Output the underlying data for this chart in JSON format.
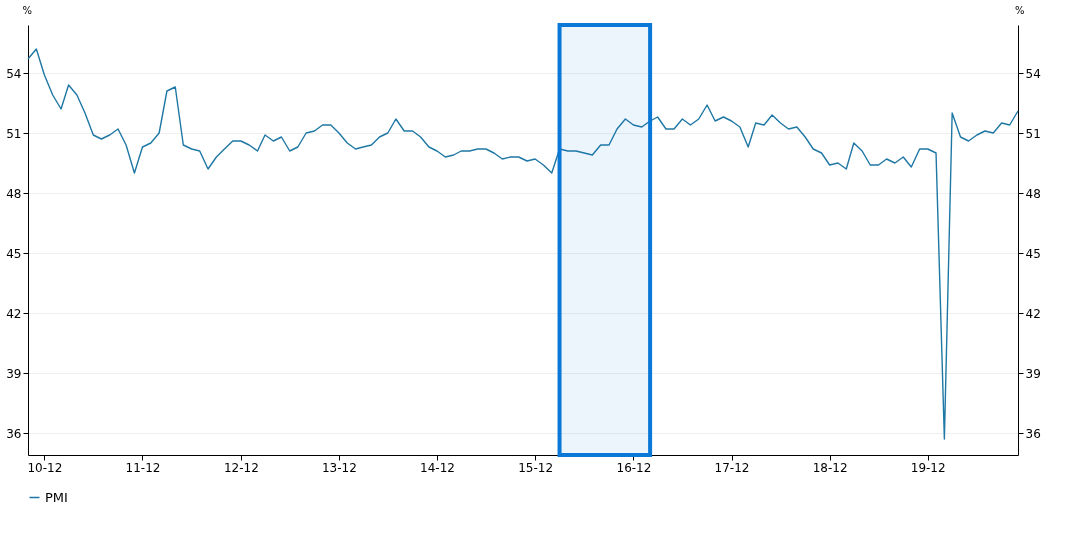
{
  "chart_data": {
    "type": "line",
    "ylabel": "%",
    "y2label": "%",
    "x": [
      "2010-10",
      "2010-11",
      "2010-12",
      "2011-01",
      "2011-02",
      "2011-03",
      "2011-04",
      "2011-05",
      "2011-06",
      "2011-07",
      "2011-08",
      "2011-09",
      "2011-10",
      "2011-11",
      "2011-12",
      "2012-01",
      "2012-02",
      "2012-03",
      "2012-04",
      "2012-05",
      "2012-06",
      "2012-07",
      "2012-08",
      "2012-09",
      "2012-10",
      "2012-11",
      "2012-12",
      "2013-01",
      "2013-02",
      "2013-03",
      "2013-04",
      "2013-05",
      "2013-06",
      "2013-07",
      "2013-08",
      "2013-09",
      "2013-10",
      "2013-11",
      "2013-12",
      "2014-01",
      "2014-02",
      "2014-03",
      "2014-04",
      "2014-05",
      "2014-06",
      "2014-07",
      "2014-08",
      "2014-09",
      "2014-10",
      "2014-11",
      "2014-12",
      "2015-01",
      "2015-02",
      "2015-03",
      "2015-04",
      "2015-05",
      "2015-06",
      "2015-07",
      "2015-08",
      "2015-09",
      "2015-10",
      "2015-11",
      "2015-12",
      "2016-01",
      "2016-02",
      "2016-03",
      "2016-04",
      "2016-05",
      "2016-06",
      "2016-07",
      "2016-08",
      "2016-09",
      "2016-10",
      "2016-11",
      "2016-12",
      "2017-01",
      "2017-02",
      "2017-03",
      "2017-04",
      "2017-05",
      "2017-06",
      "2017-07",
      "2017-08",
      "2017-09",
      "2017-10",
      "2017-11",
      "2017-12",
      "2018-01",
      "2018-02",
      "2018-03",
      "2018-04",
      "2018-05",
      "2018-06",
      "2018-07",
      "2018-08",
      "2018-09",
      "2018-10",
      "2018-11",
      "2018-12",
      "2019-01",
      "2019-02",
      "2019-03",
      "2019-04",
      "2019-05",
      "2019-06",
      "2019-07",
      "2019-08",
      "2019-09",
      "2019-10",
      "2019-11",
      "2019-12",
      "2020-01",
      "2020-02",
      "2020-03",
      "2020-04",
      "2020-05",
      "2020-06",
      "2020-07",
      "2020-08",
      "2020-09",
      "2020-10",
      "2020-11"
    ],
    "series": [
      {
        "name": "PMI",
        "color": "#1f77a4",
        "values": [
          54.7,
          55.2,
          53.9,
          52.9,
          52.2,
          53.4,
          52.9,
          52.0,
          50.9,
          50.7,
          50.9,
          51.2,
          50.4,
          49.0,
          50.3,
          50.5,
          51.0,
          53.1,
          53.3,
          50.4,
          50.2,
          50.1,
          49.2,
          49.8,
          50.2,
          50.6,
          50.6,
          50.4,
          50.1,
          50.9,
          50.6,
          50.8,
          50.1,
          50.3,
          51.0,
          51.1,
          51.4,
          51.4,
          51.0,
          50.5,
          50.2,
          50.3,
          50.4,
          50.8,
          51.0,
          51.7,
          51.1,
          51.1,
          50.8,
          50.3,
          50.1,
          49.8,
          49.9,
          50.1,
          50.1,
          50.2,
          50.2,
          50.0,
          49.7,
          49.8,
          49.8,
          49.6,
          49.7,
          49.4,
          49.0,
          50.2,
          50.1,
          50.1,
          50.0,
          49.9,
          50.4,
          50.4,
          51.2,
          51.7,
          51.4,
          51.3,
          51.6,
          51.8,
          51.2,
          51.2,
          51.7,
          51.4,
          51.7,
          52.4,
          51.6,
          51.8,
          51.6,
          51.3,
          50.3,
          51.5,
          51.4,
          51.9,
          51.5,
          51.2,
          51.3,
          50.8,
          50.2,
          50.0,
          49.4,
          49.5,
          49.2,
          50.5,
          50.1,
          49.4,
          49.4,
          49.7,
          49.5,
          49.8,
          49.3,
          50.2,
          50.2,
          50.0,
          35.7,
          52.0,
          50.8,
          50.6,
          50.9,
          51.1,
          51.0,
          51.5,
          51.4,
          52.1
        ]
      }
    ],
    "xlim": [
      "2010-10",
      "2020-11"
    ],
    "xticks": [
      {
        "value": "2010-12",
        "label": "10-12"
      },
      {
        "value": "2011-12",
        "label": "11-12"
      },
      {
        "value": "2012-12",
        "label": "12-12"
      },
      {
        "value": "2013-12",
        "label": "13-12"
      },
      {
        "value": "2014-12",
        "label": "14-12"
      },
      {
        "value": "2015-12",
        "label": "15-12"
      },
      {
        "value": "2016-12",
        "label": "16-12"
      },
      {
        "value": "2017-12",
        "label": "17-12"
      },
      {
        "value": "2018-12",
        "label": "18-12"
      },
      {
        "value": "2019-12",
        "label": "19-12"
      }
    ],
    "ylim": [
      34.9,
      56.4
    ],
    "yticks": [
      36,
      39,
      42,
      45,
      48,
      51,
      54
    ],
    "y2lim": [
      34.9,
      56.4
    ],
    "y2ticks": [
      36,
      39,
      42,
      45,
      48,
      51,
      54
    ],
    "grid": "y",
    "legend": "bottom",
    "bands": [
      {
        "axis": "x",
        "from": "2016-03",
        "to": "2017-02",
        "color": "#0a78d7"
      }
    ]
  }
}
